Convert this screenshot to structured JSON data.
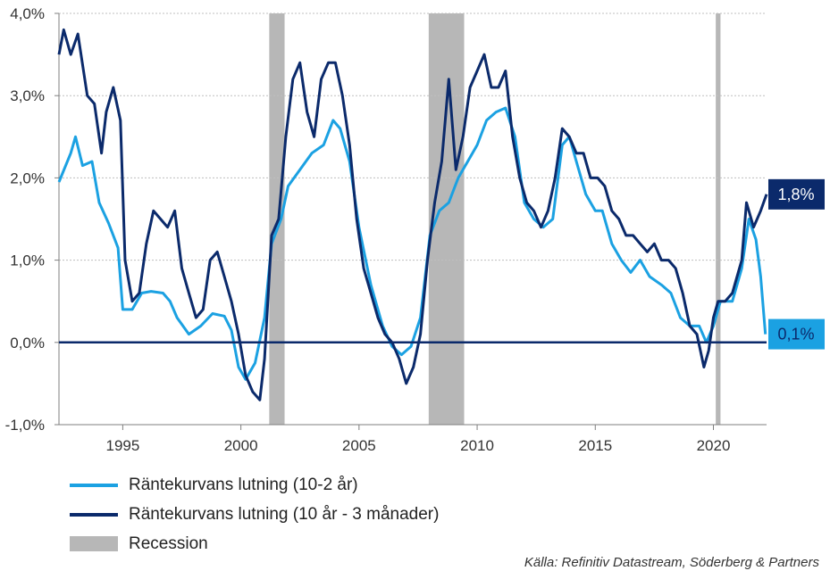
{
  "chart_data": {
    "type": "line",
    "title": "",
    "xlabel": "",
    "ylabel": "",
    "x_range": [
      1992.3,
      2022.25
    ],
    "ylim": [
      -1.0,
      4.0
    ],
    "y_ticks": [
      {
        "value": 4.0,
        "label": "4,0%"
      },
      {
        "value": 3.0,
        "label": "3,0%"
      },
      {
        "value": 2.0,
        "label": "2,0%"
      },
      {
        "value": 1.0,
        "label": "1,0%"
      },
      {
        "value": 0.0,
        "label": "0,0%"
      },
      {
        "value": -1.0,
        "label": "-1,0%"
      }
    ],
    "x_ticks": [
      {
        "value": 1995,
        "label": "1995"
      },
      {
        "value": 2000,
        "label": "2000"
      },
      {
        "value": 2005,
        "label": "2005"
      },
      {
        "value": 2010,
        "label": "2010"
      },
      {
        "value": 2015,
        "label": "2015"
      },
      {
        "value": 2020,
        "label": "2020"
      }
    ],
    "grid": "horizontal dotted",
    "recessions": [
      [
        2001.2,
        2001.85
      ],
      [
        2007.95,
        2009.45
      ],
      [
        2020.1,
        2020.3
      ]
    ],
    "series": [
      {
        "name": "Räntekurvans lutning (10-2 år)",
        "color": "#1ba1e2",
        "end_label": "0,1%",
        "points": [
          [
            1992.3,
            1.95
          ],
          [
            1992.8,
            2.3
          ],
          [
            1993.0,
            2.5
          ],
          [
            1993.3,
            2.15
          ],
          [
            1993.7,
            2.2
          ],
          [
            1994.0,
            1.7
          ],
          [
            1994.4,
            1.45
          ],
          [
            1994.8,
            1.15
          ],
          [
            1995.0,
            0.4
          ],
          [
            1995.4,
            0.4
          ],
          [
            1995.8,
            0.6
          ],
          [
            1996.2,
            0.62
          ],
          [
            1996.7,
            0.6
          ],
          [
            1997.0,
            0.5
          ],
          [
            1997.3,
            0.3
          ],
          [
            1997.8,
            0.1
          ],
          [
            1998.3,
            0.2
          ],
          [
            1998.8,
            0.35
          ],
          [
            1999.3,
            0.32
          ],
          [
            1999.6,
            0.15
          ],
          [
            1999.9,
            -0.3
          ],
          [
            2000.2,
            -0.45
          ],
          [
            2000.6,
            -0.25
          ],
          [
            2001.0,
            0.3
          ],
          [
            2001.3,
            1.2
          ],
          [
            2001.7,
            1.5
          ],
          [
            2002.0,
            1.9
          ],
          [
            2002.5,
            2.1
          ],
          [
            2003.0,
            2.3
          ],
          [
            2003.5,
            2.4
          ],
          [
            2003.9,
            2.7
          ],
          [
            2004.2,
            2.6
          ],
          [
            2004.6,
            2.2
          ],
          [
            2005.0,
            1.4
          ],
          [
            2005.5,
            0.7
          ],
          [
            2006.0,
            0.2
          ],
          [
            2006.4,
            -0.05
          ],
          [
            2006.8,
            -0.15
          ],
          [
            2007.2,
            -0.05
          ],
          [
            2007.6,
            0.3
          ],
          [
            2008.0,
            1.3
          ],
          [
            2008.4,
            1.6
          ],
          [
            2008.8,
            1.7
          ],
          [
            2009.2,
            2.0
          ],
          [
            2009.6,
            2.2
          ],
          [
            2010.0,
            2.4
          ],
          [
            2010.4,
            2.7
          ],
          [
            2010.8,
            2.8
          ],
          [
            2011.2,
            2.85
          ],
          [
            2011.6,
            2.5
          ],
          [
            2012.0,
            1.7
          ],
          [
            2012.4,
            1.5
          ],
          [
            2012.8,
            1.4
          ],
          [
            2013.2,
            1.5
          ],
          [
            2013.6,
            2.4
          ],
          [
            2013.9,
            2.5
          ],
          [
            2014.2,
            2.2
          ],
          [
            2014.6,
            1.8
          ],
          [
            2015.0,
            1.6
          ],
          [
            2015.3,
            1.6
          ],
          [
            2015.7,
            1.2
          ],
          [
            2016.1,
            1.0
          ],
          [
            2016.5,
            0.85
          ],
          [
            2016.9,
            1.0
          ],
          [
            2017.3,
            0.8
          ],
          [
            2017.8,
            0.7
          ],
          [
            2018.2,
            0.6
          ],
          [
            2018.6,
            0.3
          ],
          [
            2019.0,
            0.2
          ],
          [
            2019.4,
            0.2
          ],
          [
            2019.7,
            0.0
          ],
          [
            2020.0,
            0.2
          ],
          [
            2020.3,
            0.5
          ],
          [
            2020.8,
            0.5
          ],
          [
            2021.2,
            0.9
          ],
          [
            2021.5,
            1.5
          ],
          [
            2021.8,
            1.25
          ],
          [
            2022.0,
            0.8
          ],
          [
            2022.2,
            0.1
          ]
        ]
      },
      {
        "name": "Räntekurvans lutning (10 år - 3 månader)",
        "color": "#0b2a6b",
        "end_label": "1,8%",
        "points": [
          [
            1992.3,
            3.5
          ],
          [
            1992.5,
            3.8
          ],
          [
            1992.8,
            3.5
          ],
          [
            1993.1,
            3.75
          ],
          [
            1993.5,
            3.0
          ],
          [
            1993.8,
            2.9
          ],
          [
            1994.1,
            2.3
          ],
          [
            1994.3,
            2.8
          ],
          [
            1994.6,
            3.1
          ],
          [
            1994.9,
            2.7
          ],
          [
            1995.1,
            1.0
          ],
          [
            1995.4,
            0.5
          ],
          [
            1995.7,
            0.6
          ],
          [
            1996.0,
            1.2
          ],
          [
            1996.3,
            1.6
          ],
          [
            1996.6,
            1.5
          ],
          [
            1996.9,
            1.4
          ],
          [
            1997.2,
            1.6
          ],
          [
            1997.5,
            0.9
          ],
          [
            1997.8,
            0.6
          ],
          [
            1998.1,
            0.3
          ],
          [
            1998.4,
            0.4
          ],
          [
            1998.7,
            1.0
          ],
          [
            1999.0,
            1.1
          ],
          [
            1999.3,
            0.8
          ],
          [
            1999.6,
            0.5
          ],
          [
            1999.9,
            0.1
          ],
          [
            2000.2,
            -0.4
          ],
          [
            2000.5,
            -0.6
          ],
          [
            2000.8,
            -0.7
          ],
          [
            2001.0,
            -0.2
          ],
          [
            2001.3,
            1.3
          ],
          [
            2001.6,
            1.5
          ],
          [
            2001.9,
            2.5
          ],
          [
            2002.2,
            3.2
          ],
          [
            2002.5,
            3.4
          ],
          [
            2002.8,
            2.8
          ],
          [
            2003.1,
            2.5
          ],
          [
            2003.4,
            3.2
          ],
          [
            2003.7,
            3.4
          ],
          [
            2004.0,
            3.4
          ],
          [
            2004.3,
            3.0
          ],
          [
            2004.6,
            2.4
          ],
          [
            2004.9,
            1.5
          ],
          [
            2005.2,
            0.9
          ],
          [
            2005.5,
            0.6
          ],
          [
            2005.8,
            0.3
          ],
          [
            2006.1,
            0.1
          ],
          [
            2006.4,
            0.0
          ],
          [
            2006.7,
            -0.2
          ],
          [
            2007.0,
            -0.5
          ],
          [
            2007.3,
            -0.3
          ],
          [
            2007.6,
            0.1
          ],
          [
            2007.9,
            1.0
          ],
          [
            2008.2,
            1.7
          ],
          [
            2008.5,
            2.2
          ],
          [
            2008.8,
            3.2
          ],
          [
            2009.1,
            2.1
          ],
          [
            2009.4,
            2.5
          ],
          [
            2009.7,
            3.1
          ],
          [
            2010.0,
            3.3
          ],
          [
            2010.3,
            3.5
          ],
          [
            2010.6,
            3.1
          ],
          [
            2010.9,
            3.1
          ],
          [
            2011.2,
            3.3
          ],
          [
            2011.5,
            2.5
          ],
          [
            2011.8,
            2.0
          ],
          [
            2012.1,
            1.7
          ],
          [
            2012.4,
            1.6
          ],
          [
            2012.7,
            1.4
          ],
          [
            2013.0,
            1.6
          ],
          [
            2013.3,
            2.0
          ],
          [
            2013.6,
            2.6
          ],
          [
            2013.9,
            2.5
          ],
          [
            2014.2,
            2.3
          ],
          [
            2014.5,
            2.3
          ],
          [
            2014.8,
            2.0
          ],
          [
            2015.1,
            2.0
          ],
          [
            2015.4,
            1.9
          ],
          [
            2015.7,
            1.6
          ],
          [
            2016.0,
            1.5
          ],
          [
            2016.3,
            1.3
          ],
          [
            2016.6,
            1.3
          ],
          [
            2016.9,
            1.2
          ],
          [
            2017.2,
            1.1
          ],
          [
            2017.5,
            1.2
          ],
          [
            2017.8,
            1.0
          ],
          [
            2018.1,
            1.0
          ],
          [
            2018.4,
            0.9
          ],
          [
            2018.7,
            0.6
          ],
          [
            2019.0,
            0.2
          ],
          [
            2019.3,
            0.1
          ],
          [
            2019.6,
            -0.3
          ],
          [
            2019.8,
            -0.1
          ],
          [
            2020.0,
            0.3
          ],
          [
            2020.2,
            0.5
          ],
          [
            2020.5,
            0.5
          ],
          [
            2020.8,
            0.6
          ],
          [
            2021.2,
            1.0
          ],
          [
            2021.4,
            1.7
          ],
          [
            2021.7,
            1.4
          ],
          [
            2022.0,
            1.6
          ],
          [
            2022.25,
            1.8
          ]
        ]
      }
    ],
    "legend": [
      {
        "label": "Räntekurvans lutning (10-2 år)",
        "color": "#1ba1e2",
        "kind": "line"
      },
      {
        "label": "Räntekurvans lutning (10 år - 3 månader)",
        "color": "#0b2a6b",
        "kind": "line"
      },
      {
        "label": "Recession",
        "color": "#b7b7b7",
        "kind": "box"
      }
    ],
    "legend_position": "bottom-left",
    "source": "Källa: Refinitiv Datastream, Söderberg & Partners"
  }
}
